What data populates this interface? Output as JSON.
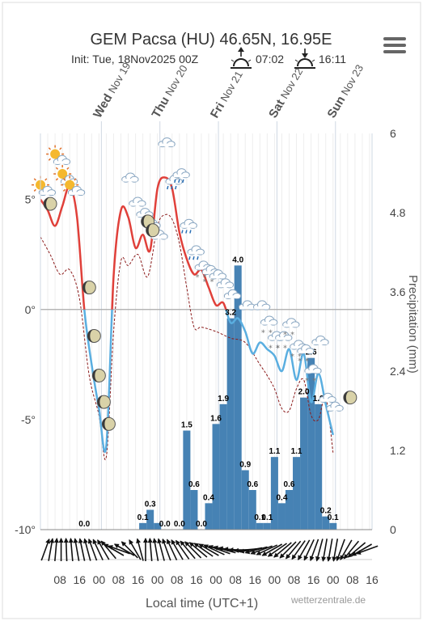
{
  "title": "GEM Pacsa (HU) 46.65N, 16.95E",
  "subtitle": {
    "init": "Init: Tue, 18Nov2025 00Z",
    "sunrise": "07:02",
    "sunset": "16:11"
  },
  "credit": "wetterzentrale.de",
  "menu_icon": "hamburger-icon",
  "colors": {
    "temp_warm": "#e0403a",
    "temp_cold": "#5aaee0",
    "dewpoint": "#8b1a1a",
    "precip_bar": "#4682b4",
    "zero_line": "#aaaaaa"
  },
  "chart_data": {
    "type": "bar",
    "xlabel": "Local time (UTC+1)",
    "ylabel_right": "Precipitation (mm)",
    "temp_axis": {
      "ticks": [
        "5°",
        "0°",
        "-5°",
        "-10°"
      ],
      "values": [
        5,
        0,
        -5,
        -10
      ],
      "range": [
        -10,
        8
      ]
    },
    "precip_axis": {
      "ticks": [
        "6",
        "4.8",
        "3.6",
        "2.4",
        "1.2",
        "0"
      ],
      "values": [
        6,
        4.8,
        3.6,
        2.4,
        1.2,
        0
      ],
      "range": [
        0,
        6
      ]
    },
    "day_labels": [
      {
        "day": "Wed",
        "date": "Nov 19",
        "hour": 25
      },
      {
        "day": "Thu",
        "date": "Nov 20",
        "hour": 49
      },
      {
        "day": "Fri",
        "date": "Nov 21",
        "hour": 73
      },
      {
        "day": "Sat",
        "date": "Nov 22",
        "hour": 97
      },
      {
        "day": "Sun",
        "date": "Nov 23",
        "hour": 121
      }
    ],
    "x_ticks": [
      "08",
      "16",
      "00",
      "08",
      "16",
      "00",
      "08",
      "16",
      "00",
      "08",
      "16",
      "00",
      "08",
      "16",
      "00",
      "08",
      "16"
    ],
    "x_tick_hours": [
      8,
      16,
      24,
      32,
      40,
      48,
      56,
      64,
      72,
      80,
      88,
      96,
      104,
      112,
      120,
      128,
      136
    ],
    "precip": [
      {
        "hour": 18,
        "value": 0.0,
        "label": "0.0"
      },
      {
        "hour": 42,
        "value": 0.1,
        "label": "0.1"
      },
      {
        "hour": 45,
        "value": 0.3,
        "label": "0.3"
      },
      {
        "hour": 48,
        "value": 0.1,
        "label": ""
      },
      {
        "hour": 51,
        "value": 0.0,
        "label": "0.0"
      },
      {
        "hour": 57,
        "value": 0.0,
        "label": "0.0"
      },
      {
        "hour": 60,
        "value": 1.5,
        "label": "1.5"
      },
      {
        "hour": 63,
        "value": 0.6,
        "label": "0.6"
      },
      {
        "hour": 66,
        "value": 0.0,
        "label": "0.0"
      },
      {
        "hour": 69,
        "value": 0.4,
        "label": "0.4"
      },
      {
        "hour": 72,
        "value": 1.6,
        "label": "1.6"
      },
      {
        "hour": 75,
        "value": 1.9,
        "label": "1.9"
      },
      {
        "hour": 78,
        "value": 3.2,
        "label": "3.2"
      },
      {
        "hour": 81,
        "value": 4.0,
        "label": "4.0"
      },
      {
        "hour": 84,
        "value": 0.9,
        "label": "0.9"
      },
      {
        "hour": 87,
        "value": 0.6,
        "label": "0.6"
      },
      {
        "hour": 90,
        "value": 0.1,
        "label": "0.1"
      },
      {
        "hour": 93,
        "value": 0.1,
        "label": "0.1"
      },
      {
        "hour": 96,
        "value": 1.1,
        "label": "1.1"
      },
      {
        "hour": 99,
        "value": 0.4,
        "label": "0.4"
      },
      {
        "hour": 102,
        "value": 0.6,
        "label": "0.6"
      },
      {
        "hour": 105,
        "value": 1.1,
        "label": "1.1"
      },
      {
        "hour": 108,
        "value": 2.0,
        "label": "2.0"
      },
      {
        "hour": 111,
        "value": 2.6,
        "label": "2.6"
      },
      {
        "hour": 114,
        "value": 1.9,
        "label": "1.9"
      },
      {
        "hour": 117,
        "value": 0.2,
        "label": "0.2"
      },
      {
        "hour": 120,
        "value": 0.1,
        "label": "0.1"
      }
    ],
    "temperature": [
      {
        "hour": 0,
        "value": 5.0
      },
      {
        "hour": 3,
        "value": 4.5
      },
      {
        "hour": 6,
        "value": 3.8
      },
      {
        "hour": 9,
        "value": 4.7
      },
      {
        "hour": 12,
        "value": 5.6
      },
      {
        "hour": 15,
        "value": 4.2
      },
      {
        "hour": 18,
        "value": 0.0
      },
      {
        "hour": 21,
        "value": -2.5
      },
      {
        "hour": 24,
        "value": -4.5
      },
      {
        "hour": 27,
        "value": -6.2
      },
      {
        "hour": 30,
        "value": 1.5
      },
      {
        "hour": 33,
        "value": 4.5
      },
      {
        "hour": 36,
        "value": 4.2
      },
      {
        "hour": 39,
        "value": 2.8
      },
      {
        "hour": 42,
        "value": 3.4
      },
      {
        "hour": 45,
        "value": 2.7
      },
      {
        "hour": 48,
        "value": 5.5
      },
      {
        "hour": 51,
        "value": 6.0
      },
      {
        "hour": 54,
        "value": 5.5
      },
      {
        "hour": 57,
        "value": 3.5
      },
      {
        "hour": 60,
        "value": 2.3
      },
      {
        "hour": 63,
        "value": 1.6
      },
      {
        "hour": 66,
        "value": 1.8
      },
      {
        "hour": 69,
        "value": 1.0
      },
      {
        "hour": 72,
        "value": 0.2
      },
      {
        "hour": 75,
        "value": 0.3
      },
      {
        "hour": 78,
        "value": -0.6
      },
      {
        "hour": 81,
        "value": -0.4
      },
      {
        "hour": 84,
        "value": -1.0
      },
      {
        "hour": 87,
        "value": -2.0
      },
      {
        "hour": 90,
        "value": -1.5
      },
      {
        "hour": 93,
        "value": -1.8
      },
      {
        "hour": 96,
        "value": -2.1
      },
      {
        "hour": 99,
        "value": -2.8
      },
      {
        "hour": 102,
        "value": -1.8
      },
      {
        "hour": 105,
        "value": -3.2
      },
      {
        "hour": 108,
        "value": -2.0
      },
      {
        "hour": 111,
        "value": -4.2
      },
      {
        "hour": 114,
        "value": -2.9
      },
      {
        "hour": 117,
        "value": -4.3
      },
      {
        "hour": 120,
        "value": -5.7
      }
    ],
    "dewpoint": [
      {
        "hour": 0,
        "value": 3.3
      },
      {
        "hour": 4,
        "value": 2.5
      },
      {
        "hour": 8,
        "value": 1.6
      },
      {
        "hour": 12,
        "value": 1.8
      },
      {
        "hour": 16,
        "value": 0.5
      },
      {
        "hour": 20,
        "value": -3.0
      },
      {
        "hour": 24,
        "value": -4.8
      },
      {
        "hour": 27,
        "value": -6.7
      },
      {
        "hour": 30,
        "value": -1.0
      },
      {
        "hour": 33,
        "value": 2.2
      },
      {
        "hour": 36,
        "value": 2.0
      },
      {
        "hour": 40,
        "value": 2.5
      },
      {
        "hour": 44,
        "value": 1.5
      },
      {
        "hour": 48,
        "value": 3.8
      },
      {
        "hour": 51,
        "value": 4.3
      },
      {
        "hour": 54,
        "value": 4.1
      },
      {
        "hour": 57,
        "value": 3.0
      },
      {
        "hour": 60,
        "value": 1.0
      },
      {
        "hour": 63,
        "value": -0.8
      },
      {
        "hour": 66,
        "value": -0.8
      },
      {
        "hour": 72,
        "value": -1.0
      },
      {
        "hour": 78,
        "value": -1.3
      },
      {
        "hour": 84,
        "value": -1.5
      },
      {
        "hour": 90,
        "value": -2.5
      },
      {
        "hour": 93,
        "value": -3.0
      },
      {
        "hour": 96,
        "value": -3.6
      },
      {
        "hour": 99,
        "value": -4.5
      },
      {
        "hour": 102,
        "value": -4.6
      },
      {
        "hour": 105,
        "value": -3.6
      },
      {
        "hour": 108,
        "value": -3.2
      },
      {
        "hour": 111,
        "value": -4.8
      },
      {
        "hour": 114,
        "value": -5.0
      },
      {
        "hour": 117,
        "value": -4.0
      },
      {
        "hour": 120,
        "value": -6.5
      }
    ],
    "weather_icons": [
      {
        "hour": 2,
        "temp": 5.0,
        "icon": "partly-sunny-icon"
      },
      {
        "hour": 8,
        "temp": 6.4,
        "icon": "partly-sunny-icon"
      },
      {
        "hour": 11,
        "temp": 5.5,
        "icon": "partly-sunny-icon"
      },
      {
        "hour": 14,
        "temp": 5.0,
        "icon": "partly-sunny-icon"
      },
      {
        "hour": 36,
        "temp": 5.6,
        "icon": "cloud-icon"
      },
      {
        "hour": 39,
        "temp": 4.5,
        "icon": "cloud-icon"
      },
      {
        "hour": 42,
        "temp": 4.0,
        "icon": "cloud-icon"
      },
      {
        "hour": 45,
        "temp": 3.5,
        "icon": "cloud-icon"
      },
      {
        "hour": 48,
        "temp": 3.0,
        "icon": "cloud-icon"
      },
      {
        "hour": 51,
        "temp": 7.2,
        "icon": "cloud-icon"
      },
      {
        "hour": 54,
        "temp": 5.5,
        "icon": "rain-icon"
      },
      {
        "hour": 57,
        "temp": 5.8,
        "icon": "rain-icon"
      },
      {
        "hour": 60,
        "temp": 3.5,
        "icon": "rain-icon"
      },
      {
        "hour": 63,
        "temp": 2.3,
        "icon": "rain-icon"
      },
      {
        "hour": 66,
        "temp": 1.6,
        "icon": "snow-icon"
      },
      {
        "hour": 69,
        "temp": 1.4,
        "icon": "snow-icon"
      },
      {
        "hour": 72,
        "temp": 1.2,
        "icon": "cloud-icon"
      },
      {
        "hour": 75,
        "temp": 0.8,
        "icon": "cloud-icon"
      },
      {
        "hour": 78,
        "temp": 0.3,
        "icon": "cloud-icon"
      },
      {
        "hour": 84,
        "temp": -0.2,
        "icon": "cloud-icon"
      },
      {
        "hour": 90,
        "temp": -0.2,
        "icon": "cloud-icon"
      },
      {
        "hour": 93,
        "temp": -0.9,
        "icon": "snow-icon"
      },
      {
        "hour": 96,
        "temp": -1.6,
        "icon": "snow-icon"
      },
      {
        "hour": 99,
        "temp": -1.6,
        "icon": "snow-icon"
      },
      {
        "hour": 102,
        "temp": -1.0,
        "icon": "snow-icon"
      },
      {
        "hour": 105,
        "temp": -2.0,
        "icon": "snow-icon"
      },
      {
        "hour": 108,
        "temp": -2.2,
        "icon": "snow-icon"
      },
      {
        "hour": 111,
        "temp": -3.1,
        "icon": "snow-icon"
      },
      {
        "hour": 114,
        "temp": -1.8,
        "icon": "cloud-icon"
      },
      {
        "hour": 117,
        "temp": -4.4,
        "icon": "cloud-icon"
      },
      {
        "hour": 120,
        "temp": -4.8,
        "icon": "cloud-icon"
      }
    ],
    "moon_icons": [
      {
        "hour": 4,
        "temp": 4.8
      },
      {
        "hour": 20,
        "temp": 1.0
      },
      {
        "hour": 22,
        "temp": -1.2
      },
      {
        "hour": 24,
        "temp": -3.0
      },
      {
        "hour": 26,
        "temp": -4.2
      },
      {
        "hour": 28,
        "temp": -5.2
      },
      {
        "hour": 44,
        "temp": 4.0
      },
      {
        "hour": 46,
        "temp": 3.6
      },
      {
        "hour": 127,
        "temp": -4.0
      }
    ],
    "wind_arrows_deg": [
      200,
      190,
      185,
      180,
      178,
      175,
      170,
      168,
      165,
      160,
      155,
      150,
      140,
      120,
      110,
      120,
      135,
      150,
      165,
      180,
      175,
      170,
      165,
      160,
      155,
      150,
      145,
      140,
      135,
      130,
      125,
      120,
      115,
      110,
      105,
      100,
      95,
      90,
      85,
      80,
      75,
      70,
      65,
      60,
      55,
      50,
      45,
      40,
      35,
      30,
      25,
      20,
      15,
      10,
      10,
      10,
      20,
      30,
      40,
      50,
      60,
      70
    ]
  }
}
